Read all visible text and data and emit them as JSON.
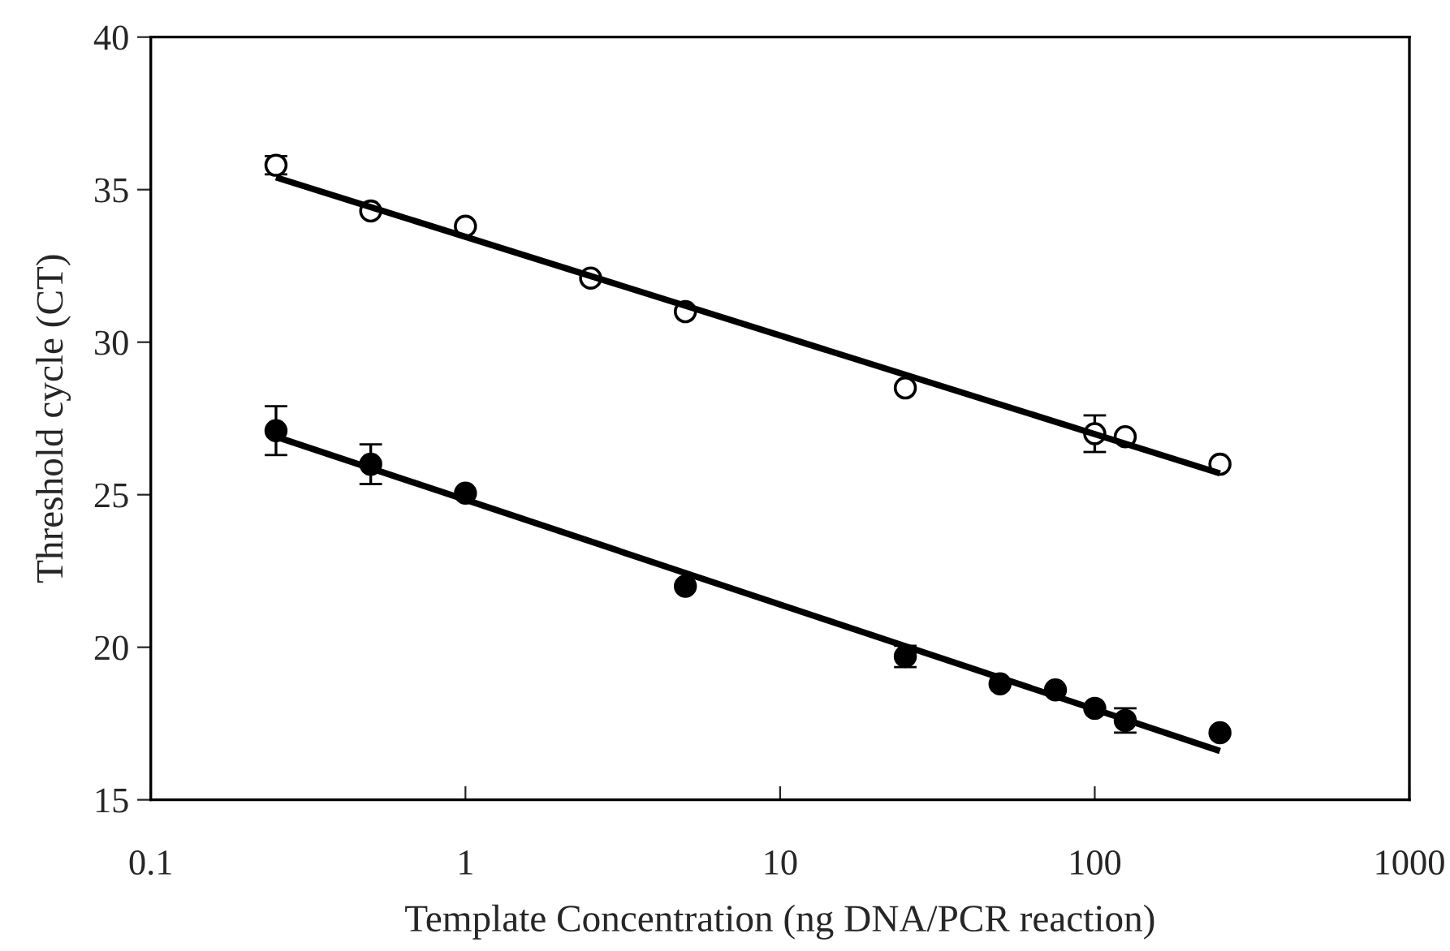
{
  "chart_data": {
    "type": "scatter",
    "xlabel": "Template Concentration (ng DNA/PCR reaction)",
    "ylabel": "Threshold cycle (CT)",
    "log": "x",
    "xlim": [
      0.1,
      1000
    ],
    "xticks": [
      0.1,
      1,
      10,
      100,
      1000
    ],
    "ylim": [
      15,
      40
    ],
    "yticks": [
      15,
      20,
      25,
      30,
      35,
      40
    ],
    "grid": false,
    "legend": false,
    "marker": "circle",
    "series": [
      {
        "color": "#ffffff",
        "x": [
          0.25,
          0.5,
          1,
          2.5,
          5,
          25,
          100,
          125,
          250
        ],
        "values": [
          35.8,
          34.3,
          33.8,
          32.1,
          31.0,
          28.5,
          27.0,
          26.9,
          26.0
        ],
        "errors": [
          0.3,
          null,
          null,
          null,
          null,
          null,
          0.6,
          null,
          null
        ]
      },
      {
        "color": "#000000",
        "x": [
          0.25,
          0.5,
          1,
          5,
          25,
          50,
          75,
          100,
          125,
          250
        ],
        "values": [
          27.1,
          26.0,
          25.05,
          22.0,
          19.7,
          18.8,
          18.6,
          18.0,
          17.6,
          17.2
        ],
        "errors": [
          0.8,
          0.65,
          null,
          null,
          0.35,
          null,
          null,
          null,
          0.4,
          null
        ]
      },
      {
        "type": "line",
        "marker": "none",
        "color": "#000000",
        "x": [
          0.25,
          250
        ],
        "values": [
          35.4,
          25.7
        ]
      },
      {
        "type": "line",
        "marker": "none",
        "color": "#000000",
        "x": [
          0.25,
          250
        ],
        "values": [
          26.9,
          16.6
        ]
      }
    ]
  }
}
